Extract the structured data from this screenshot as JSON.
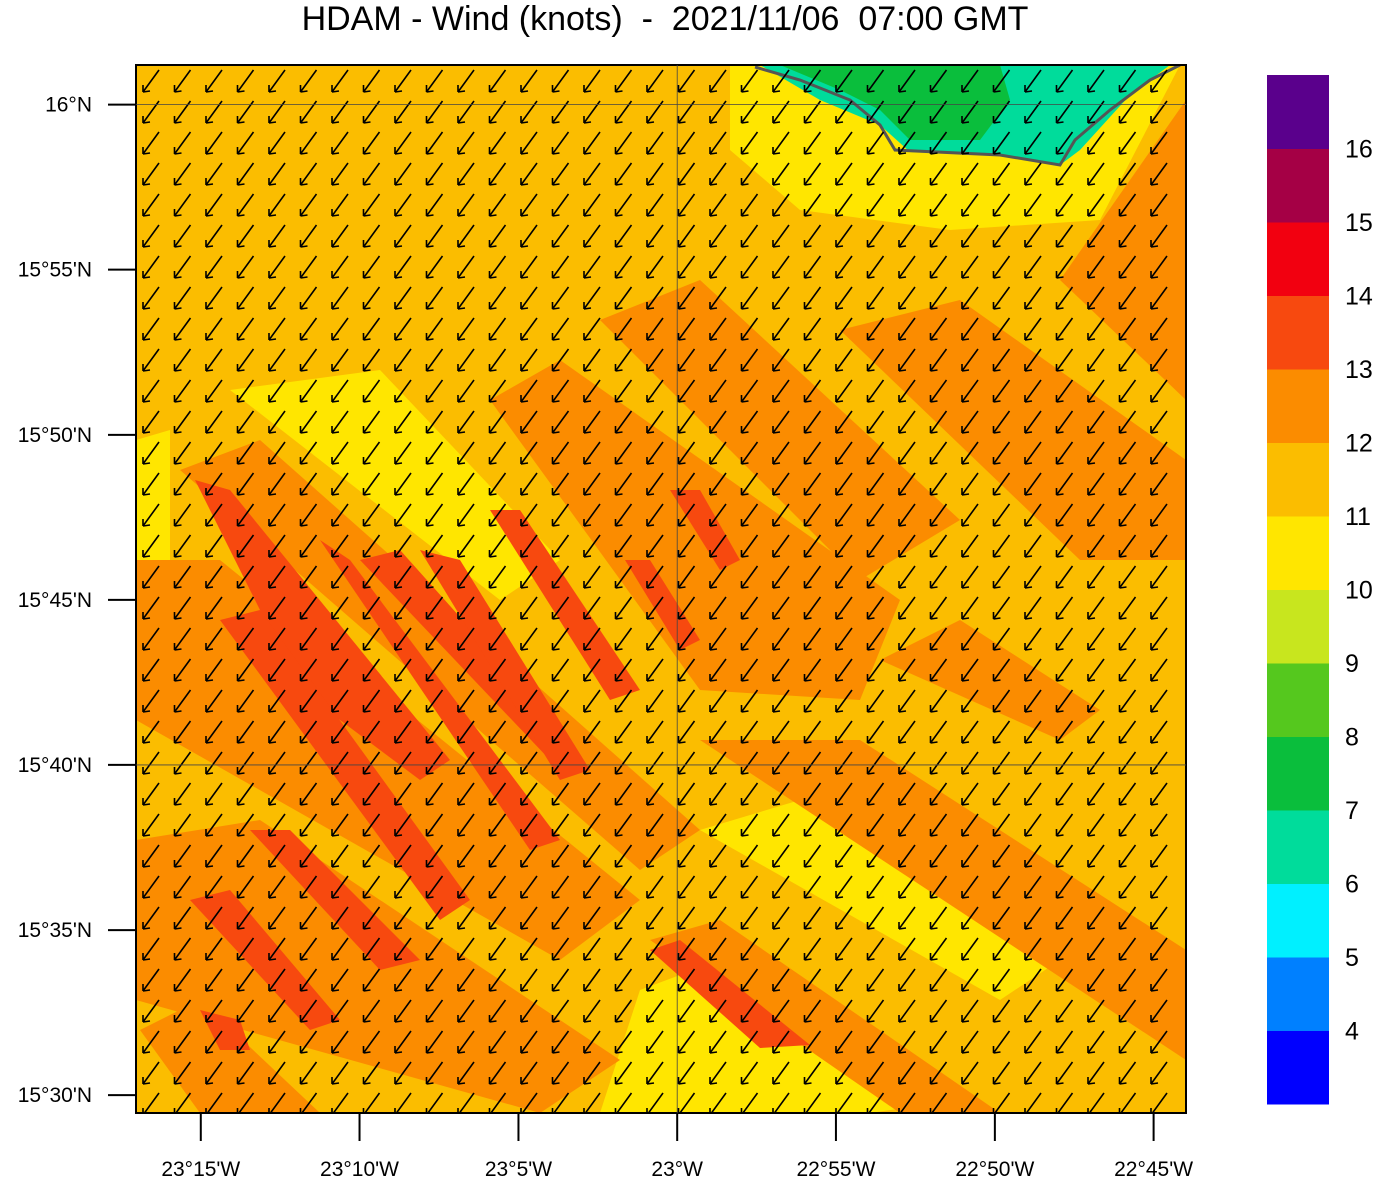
{
  "chart_data": {
    "type": "wind-map",
    "title": "HDAM - Wind (knots)  -  2021/11/06  07:00 GMT",
    "xlim": [
      -23.284,
      -22.733
    ],
    "ylim": [
      15.491,
      16.02
    ],
    "xticks": [
      {
        "value": -23.25,
        "label": "23°15'W"
      },
      {
        "value": -23.1667,
        "label": "23°10'W"
      },
      {
        "value": -23.0833,
        "label": "23°5'W"
      },
      {
        "value": -23,
        "label": "23°W"
      },
      {
        "value": -22.9167,
        "label": "22°55'W"
      },
      {
        "value": -22.8333,
        "label": "22°50'W"
      },
      {
        "value": -22.75,
        "label": "22°45'W"
      }
    ],
    "yticks": [
      {
        "value": 16,
        "label": "16°N"
      },
      {
        "value": 15.9167,
        "label": "15°55'N"
      },
      {
        "value": 15.8333,
        "label": "15°50'N"
      },
      {
        "value": 15.75,
        "label": "15°45'N"
      },
      {
        "value": 15.6667,
        "label": "15°40'N"
      },
      {
        "value": 15.5833,
        "label": "15°35'N"
      },
      {
        "value": 15.5,
        "label": "15°30'N"
      }
    ],
    "colorbar": {
      "colors": [
        "#0000ff",
        "#0080ff",
        "#00f0ff",
        "#00dc9b",
        "#0abe3c",
        "#55c81e",
        "#c8e61e",
        "#ffe600",
        "#fbbd00",
        "#fb8c00",
        "#f7490f",
        "#f20010",
        "#a50045",
        "#5a008c"
      ],
      "levels": [
        4,
        5,
        6,
        7,
        8,
        9,
        10,
        11,
        12,
        13,
        14,
        15,
        16
      ]
    }
  }
}
